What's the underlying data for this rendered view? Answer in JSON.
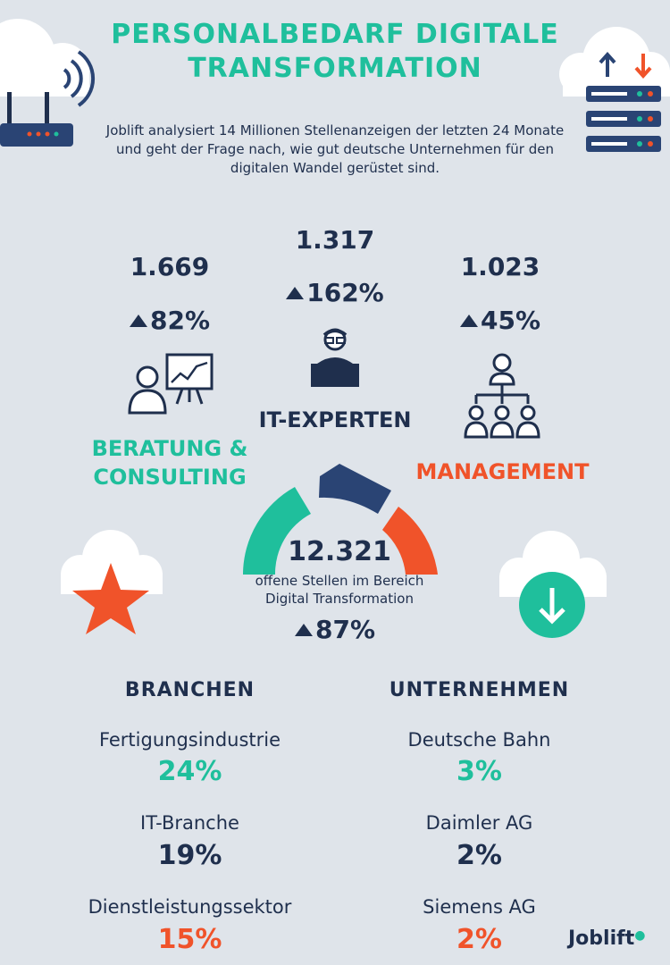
{
  "title_line1": "PERSONALBEDARF DIGITALE",
  "title_line2": "TRANSFORMATION",
  "intro": "Joblift analysiert 14 Millionen Stellenanzeigen der letzten 24 Monate und geht der Frage nach, wie gut deutsche Unternehmen für den digitalen Wandel gerüstet sind.",
  "categories": {
    "consulting": {
      "count": "1.669",
      "change": "82%",
      "label1": "BERATUNG &",
      "label2": "CONSULTING"
    },
    "it": {
      "count": "1.317",
      "change": "162%",
      "label": "IT-EXPERTEN"
    },
    "management": {
      "count": "1.023",
      "change": "45%",
      "label": "MANAGEMENT"
    }
  },
  "total": {
    "count": "12.321",
    "desc1": "offene Stellen im Bereich",
    "desc2": "Digital Transformation",
    "change": "87%"
  },
  "branchen": {
    "heading": "BRANCHEN",
    "items": [
      {
        "label": "Fertigungsindustrie",
        "value": "24%"
      },
      {
        "label": "IT-Branche",
        "value": "19%"
      },
      {
        "label": "Dienstleistungssektor",
        "value": "15%"
      }
    ]
  },
  "unternehmen": {
    "heading": "UNTERNEHMEN",
    "items": [
      {
        "label": "Deutsche Bahn",
        "value": "3%"
      },
      {
        "label": "Daimler AG",
        "value": "2%"
      },
      {
        "label": "Siemens AG",
        "value": "2%"
      }
    ]
  },
  "brand": "Joblift",
  "colors": {
    "teal": "#1fbf9c",
    "navy": "#1f2f4d",
    "orange": "#f0532a",
    "background": "#dfe4ea"
  }
}
